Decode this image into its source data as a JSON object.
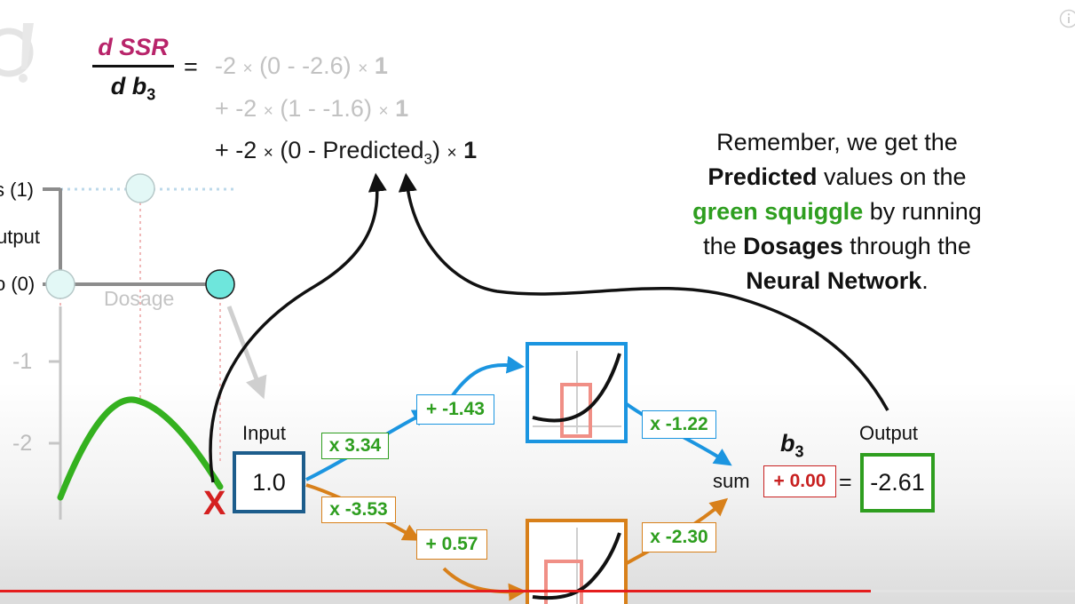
{
  "equation": {
    "numerator": "d SSR",
    "denominator": "d b",
    "denominator_sub": "3",
    "equals": "=",
    "terms": [
      {
        "lead": "-2",
        "x1": "×",
        "paren": "(0 - -2.6)",
        "x2": "×",
        "one": "1",
        "faded": true
      },
      {
        "lead": "+ -2",
        "x1": "×",
        "paren": "(1 - -1.6)",
        "x2": "×",
        "one": "1",
        "faded": true
      },
      {
        "lead": "+ -2",
        "x1": "×",
        "paren_open": "(0 - Predicted",
        "paren_sub": "3",
        "paren_close": ")",
        "x2": "×",
        "one": "1",
        "faded": false
      }
    ]
  },
  "note": {
    "l1": "Remember, we get the",
    "l2_bold": "Predicted",
    "l2_rest": " values on the",
    "l3_green": "green squiggle",
    "l3_rest": " by running",
    "l4_pre": "the ",
    "l4_bold": "Dosages",
    "l4_rest": " through the",
    "l5_bold": "Neural Network",
    "l5_rest": "."
  },
  "graph": {
    "label_top": "s (1)",
    "label_mid": "utput",
    "label_bottom": "o (0)",
    "xlabel": "Dosage",
    "tick_neg1": "-1",
    "tick_neg2": "-2"
  },
  "network": {
    "input_label": "Input",
    "input_value": "1.0",
    "w_top_in": "x 3.34",
    "b_top": "+ -1.43",
    "w_top_out": "x -1.22",
    "w_bot_in": "x -3.53",
    "b_bot": "+ 0.57",
    "w_bot_out": "x -2.30",
    "sum_label": "sum",
    "b3_label": "b",
    "b3_sub": "3",
    "b3_value": "+ 0.00",
    "equals": "=",
    "output_label": "Output",
    "output_value": "-2.61",
    "x_mark": "X"
  },
  "colors": {
    "blue": "#1b95e0",
    "orange": "#d8801a",
    "green": "#2e9e1f",
    "red": "#c82020",
    "navy": "#1d5d8c",
    "magenta": "#b8246a"
  },
  "progress": {
    "fraction": 0.81
  }
}
